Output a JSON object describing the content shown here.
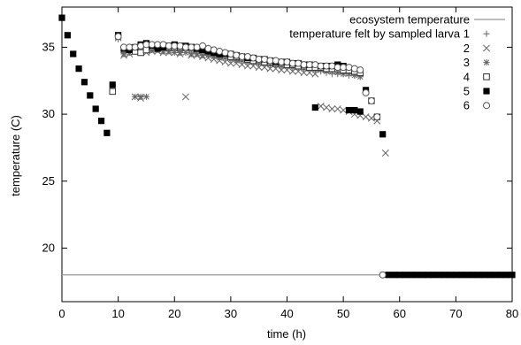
{
  "chart_data": {
    "type": "scatter",
    "xlabel": "time (h)",
    "ylabel": "temperature (C)",
    "xlim": [
      0,
      80
    ],
    "ylim": [
      16,
      38
    ],
    "xticks": [
      0,
      10,
      20,
      30,
      40,
      50,
      60,
      70,
      80
    ],
    "yticks": [
      20,
      25,
      30,
      35
    ],
    "grid": false,
    "legend_position": "top-right",
    "ecosystem": {
      "name": "ecosystem temperature",
      "x": [
        0,
        57
      ],
      "y": [
        18,
        18
      ]
    },
    "series": [
      {
        "name": "temperature felt by sampled larva 1",
        "marker": "plus",
        "x": [
          10,
          11,
          12,
          13,
          14,
          15,
          16,
          17,
          18,
          19,
          20,
          21,
          22,
          23,
          24,
          25,
          26,
          27,
          28,
          29,
          30,
          31,
          32,
          33,
          34,
          35,
          36,
          37,
          38,
          39,
          40,
          41,
          42,
          43,
          44,
          45,
          46,
          47,
          48,
          49,
          50,
          51,
          52,
          53
        ],
        "y": [
          35.6,
          34.6,
          34.7,
          34.8,
          34.9,
          34.9,
          34.8,
          34.9,
          34.9,
          34.8,
          34.8,
          34.7,
          34.8,
          34.7,
          34.8,
          34.6,
          34.4,
          34.3,
          34.3,
          34.2,
          34.1,
          34.0,
          34.0,
          33.9,
          33.8,
          33.8,
          33.7,
          33.7,
          33.6,
          33.6,
          33.5,
          33.5,
          33.5,
          33.4,
          33.4,
          33.3,
          33.2,
          33.1,
          33.0,
          33.0,
          33.0,
          32.9,
          32.9,
          32.8
        ]
      },
      {
        "name": "2",
        "marker": "cross",
        "x": [
          10,
          11,
          12,
          13,
          14,
          15,
          16,
          17,
          18,
          19,
          20,
          21,
          22,
          23,
          24,
          25,
          26,
          27,
          28,
          29,
          30,
          31,
          32,
          33,
          34,
          35,
          36,
          37,
          38,
          39,
          40,
          41,
          42,
          43,
          44,
          45,
          46,
          47,
          48,
          49,
          50,
          51,
          52,
          53,
          54,
          55,
          56,
          57.5
        ],
        "y": [
          35.7,
          34.4,
          34.5,
          31.3,
          31.2,
          34.6,
          34.7,
          34.7,
          34.6,
          34.6,
          34.6,
          34.5,
          31.3,
          34.4,
          34.4,
          34.3,
          34.2,
          34.1,
          34.0,
          33.9,
          33.8,
          33.8,
          33.7,
          33.6,
          33.6,
          33.5,
          33.5,
          33.4,
          33.4,
          33.3,
          33.3,
          33.2,
          33.2,
          33.1,
          33.1,
          33.0,
          30.6,
          30.5,
          30.4,
          30.4,
          30.3,
          30.2,
          30.0,
          29.9,
          29.8,
          29.7,
          29.5,
          27.1
        ]
      },
      {
        "name": "3",
        "marker": "star",
        "x": [
          10,
          11,
          12,
          13,
          14,
          15,
          16,
          17,
          18,
          19,
          20,
          21,
          22,
          23,
          24,
          25,
          26,
          27,
          28,
          29,
          30,
          31,
          32,
          33,
          34,
          35,
          36,
          37,
          38,
          39,
          40,
          41,
          42,
          43,
          44,
          45,
          46,
          47,
          48,
          49,
          50,
          51,
          52,
          53
        ],
        "y": [
          35.8,
          34.5,
          34.6,
          31.3,
          31.3,
          31.3,
          34.8,
          34.8,
          34.7,
          34.7,
          34.6,
          34.6,
          34.6,
          34.5,
          34.5,
          34.4,
          34.4,
          34.3,
          34.2,
          34.2,
          34.1,
          34.0,
          34.0,
          33.9,
          33.9,
          33.8,
          33.8,
          33.7,
          33.7,
          33.6,
          33.6,
          33.5,
          33.5,
          33.4,
          33.4,
          33.3,
          33.3,
          33.2,
          33.2,
          33.1,
          33.0,
          33.0,
          32.9,
          32.8
        ]
      },
      {
        "name": "4",
        "marker": "open-square",
        "x": [
          9,
          13,
          14,
          15,
          16,
          17,
          18,
          19,
          20,
          21,
          22,
          23,
          24,
          25,
          26,
          27,
          28,
          29,
          30,
          31,
          32,
          33,
          34,
          35,
          36,
          37,
          38,
          39,
          40,
          41,
          42,
          43,
          44,
          45,
          46,
          47,
          48,
          49,
          50,
          51,
          52,
          53
        ],
        "y": [
          31.7,
          34.7,
          34.6,
          34.8,
          35.0,
          35.0,
          35.1,
          35.0,
          35.0,
          35.0,
          35.0,
          35.0,
          34.9,
          34.8,
          34.7,
          34.6,
          34.5,
          34.4,
          34.3,
          34.3,
          34.2,
          34.1,
          34.0,
          34.0,
          33.9,
          33.9,
          33.8,
          33.8,
          33.7,
          33.7,
          33.6,
          33.6,
          33.5,
          33.5,
          33.5,
          33.4,
          33.4,
          33.4,
          33.3,
          33.3,
          33.2,
          33.1
        ]
      },
      {
        "name": "5",
        "marker": "filled-square",
        "x": [
          0,
          1,
          2,
          3,
          4,
          5,
          6,
          7,
          8,
          9,
          10,
          11,
          12,
          13,
          14,
          15,
          16,
          17,
          18,
          19,
          20,
          21,
          22,
          23,
          24,
          25,
          26,
          27,
          28,
          29,
          30,
          31,
          32,
          33,
          34,
          35,
          36,
          37,
          38,
          39,
          40,
          41,
          42,
          43,
          44,
          45,
          46,
          47,
          48,
          49,
          50,
          51,
          52,
          53,
          54,
          55,
          56,
          57,
          58,
          59,
          60,
          61,
          62,
          63,
          64,
          65,
          66,
          67,
          68,
          69,
          70,
          71,
          72,
          73,
          74,
          75,
          76,
          77,
          78,
          79,
          80
        ],
        "y": [
          37.2,
          35.9,
          34.5,
          33.4,
          32.4,
          31.4,
          30.4,
          29.5,
          28.6,
          32.2,
          35.9,
          34.9,
          34.8,
          35.0,
          35.2,
          35.3,
          35.1,
          34.9,
          35.0,
          35.1,
          35.2,
          35.1,
          35.1,
          35.0,
          34.9,
          34.8,
          34.7,
          34.6,
          34.5,
          34.5,
          34.5,
          34.4,
          34.3,
          34.2,
          34.2,
          34.1,
          34.1,
          34.0,
          33.9,
          33.9,
          33.9,
          33.8,
          33.8,
          33.7,
          33.7,
          30.5,
          33.6,
          33.6,
          33.6,
          33.7,
          33.6,
          30.3,
          30.3,
          30.2,
          31.8,
          31.0,
          29.8,
          28.5,
          18.0,
          18.0,
          18.0,
          18.0,
          18.0,
          18.0,
          18.0,
          18.0,
          18.0,
          18.0,
          18.0,
          18.0,
          18.0,
          18.0,
          18.0,
          18.0,
          18.0,
          18.0,
          18.0,
          18.0,
          18.0,
          18.0,
          18.0
        ]
      },
      {
        "name": "6",
        "marker": "open-circle",
        "x": [
          10,
          11,
          12,
          13,
          14,
          15,
          16,
          17,
          18,
          19,
          20,
          21,
          22,
          23,
          24,
          25,
          26,
          27,
          28,
          29,
          30,
          31,
          32,
          33,
          34,
          35,
          36,
          37,
          38,
          39,
          40,
          41,
          42,
          43,
          44,
          45,
          46,
          47,
          48,
          49,
          50,
          51,
          52,
          53,
          54,
          55,
          56,
          57
        ],
        "y": [
          35.8,
          35.0,
          35.0,
          35.0,
          35.1,
          35.2,
          35.2,
          35.2,
          35.2,
          35.1,
          35.1,
          35.1,
          35.0,
          35.0,
          35.0,
          35.1,
          34.9,
          34.8,
          34.7,
          34.6,
          34.5,
          34.4,
          34.3,
          34.3,
          34.2,
          34.1,
          34.1,
          34.0,
          34.0,
          33.9,
          33.9,
          33.8,
          33.8,
          33.7,
          33.7,
          33.7,
          33.6,
          33.6,
          33.6,
          33.5,
          33.5,
          33.5,
          33.4,
          33.3,
          31.6,
          31.0,
          29.8,
          18.0
        ]
      }
    ]
  }
}
